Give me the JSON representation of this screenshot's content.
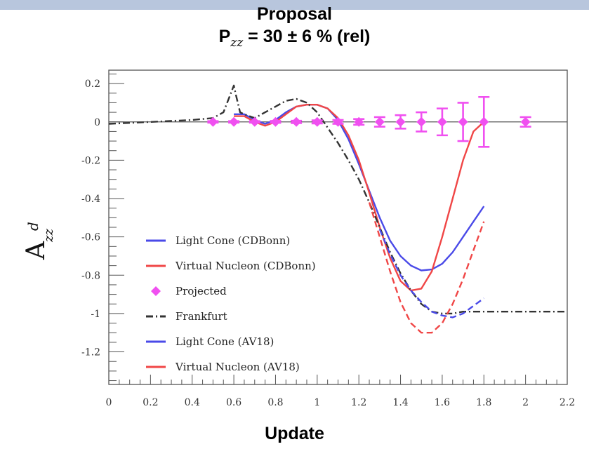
{
  "header": {
    "title": "Proposal",
    "subtitle_prefix": "P",
    "subtitle_sub": "zz",
    "subtitle_rest": " = 30 ± 6 % (rel)"
  },
  "footer": {
    "label": "Update"
  },
  "chart_data": {
    "type": "line",
    "xlim": [
      0,
      2.2
    ],
    "ylim": [
      -1.37,
      0.27
    ],
    "grid": false,
    "legend_position": "bottom-left",
    "ylabel_main": "A",
    "ylabel_sup": "d",
    "ylabel_sub": "zz",
    "x_ticks": [
      "0",
      "0.2",
      "0.4",
      "0.6",
      "0.8",
      "1",
      "1.2",
      "1.4",
      "1.6",
      "1.8",
      "2",
      "2.2"
    ],
    "y_ticks": [
      "0.2",
      "0",
      "-0.2",
      "-0.4",
      "-0.6",
      "-0.8",
      "-1",
      "-1.2"
    ],
    "colors": {
      "blue": "#4a4ae8",
      "red": "#f04646",
      "magenta": "#f050f0",
      "black": "#333333"
    },
    "series": [
      {
        "name": "Light Cone (CDBonn)",
        "color": "#4a4ae8",
        "dash": "solid",
        "x": [
          0.6,
          0.65,
          0.7,
          0.75,
          0.8,
          0.85,
          0.9,
          0.95,
          1.0,
          1.05,
          1.1,
          1.15,
          1.2,
          1.25,
          1.3,
          1.35,
          1.4,
          1.45,
          1.5,
          1.55,
          1.6,
          1.65,
          1.7,
          1.75,
          1.8
        ],
        "y": [
          0.04,
          0.04,
          0.01,
          -0.01,
          0.01,
          0.05,
          0.08,
          0.09,
          0.09,
          0.07,
          0.01,
          -0.09,
          -0.22,
          -0.36,
          -0.5,
          -0.62,
          -0.7,
          -0.75,
          -0.775,
          -0.77,
          -0.74,
          -0.68,
          -0.6,
          -0.52,
          -0.44
        ]
      },
      {
        "name": "Virtual Nucleon (CDBonn)",
        "color": "#f04646",
        "dash": "solid",
        "x": [
          0.6,
          0.65,
          0.7,
          0.75,
          0.8,
          0.85,
          0.9,
          0.95,
          1.0,
          1.05,
          1.1,
          1.15,
          1.2,
          1.25,
          1.3,
          1.35,
          1.4,
          1.45,
          1.5,
          1.55,
          1.6,
          1.65,
          1.7,
          1.75,
          1.8
        ],
        "y": [
          0.03,
          0.03,
          0.0,
          -0.02,
          0.0,
          0.04,
          0.08,
          0.09,
          0.09,
          0.07,
          0.02,
          -0.07,
          -0.2,
          -0.37,
          -0.55,
          -0.71,
          -0.83,
          -0.88,
          -0.87,
          -0.78,
          -0.6,
          -0.4,
          -0.2,
          -0.05,
          0.0
        ]
      },
      {
        "name": "Frankfurt",
        "color": "#333333",
        "dash": "dashdot",
        "x": [
          0.0,
          0.2,
          0.4,
          0.5,
          0.55,
          0.6,
          0.61,
          0.63,
          0.65,
          0.7,
          0.75,
          0.8,
          0.85,
          0.9,
          0.95,
          1.0,
          1.05,
          1.1,
          1.15,
          1.2,
          1.25,
          1.3,
          1.35,
          1.4,
          1.45,
          1.5,
          1.55,
          1.6,
          1.65,
          1.7,
          1.8,
          1.9,
          2.0,
          2.1,
          2.2
        ],
        "y": [
          -0.01,
          0.0,
          0.01,
          0.02,
          0.05,
          0.19,
          0.14,
          0.05,
          0.04,
          0.02,
          0.05,
          0.08,
          0.11,
          0.12,
          0.1,
          0.05,
          -0.03,
          -0.11,
          -0.2,
          -0.3,
          -0.42,
          -0.55,
          -0.68,
          -0.79,
          -0.88,
          -0.95,
          -0.99,
          -1.0,
          -1.0,
          -0.99,
          -0.99,
          -0.99,
          -0.99,
          -0.99,
          -0.99
        ]
      },
      {
        "name": "Light Cone (AV18)",
        "color": "#4a4ae8",
        "dash": "dashed",
        "x": [
          1.3,
          1.35,
          1.4,
          1.45,
          1.5,
          1.55,
          1.6,
          1.65,
          1.7,
          1.75,
          1.8
        ],
        "y": [
          -0.56,
          -0.69,
          -0.8,
          -0.88,
          -0.94,
          -0.99,
          -1.01,
          -1.02,
          -1.0,
          -0.96,
          -0.92
        ]
      },
      {
        "name": "Virtual Nucleon (AV18)",
        "color": "#f04646",
        "dash": "dashed",
        "x": [
          1.25,
          1.3,
          1.35,
          1.4,
          1.45,
          1.5,
          1.55,
          1.6,
          1.65,
          1.7,
          1.75,
          1.8
        ],
        "y": [
          -0.42,
          -0.6,
          -0.78,
          -0.94,
          -1.05,
          -1.1,
          -1.1,
          -1.05,
          -0.95,
          -0.82,
          -0.67,
          -0.52
        ]
      }
    ],
    "projected": {
      "name": "Projected",
      "color": "#f050f0",
      "x": [
        0.5,
        0.6,
        0.7,
        0.8,
        0.9,
        1.0,
        1.1,
        1.2,
        1.3,
        1.4,
        1.5,
        1.6,
        1.7,
        1.8,
        2.0
      ],
      "y": [
        0,
        0,
        0,
        0,
        0,
        0,
        0,
        0,
        0,
        0,
        0,
        0,
        0,
        0,
        0
      ],
      "err": [
        0.004,
        0.004,
        0.004,
        0.005,
        0.006,
        0.008,
        0.01,
        0.015,
        0.025,
        0.035,
        0.05,
        0.07,
        0.1,
        0.13,
        0.025
      ]
    },
    "systematic_bars": {
      "color": "#f050f0",
      "baseline": -1.37,
      "bins": [
        {
          "x0": 0.45,
          "x1": 0.55,
          "h": 0.01
        },
        {
          "x0": 0.75,
          "x1": 0.85,
          "h": 0.005
        },
        {
          "x0": 1.15,
          "x1": 1.25,
          "h": 0.01
        },
        {
          "x0": 1.25,
          "x1": 1.35,
          "h": 0.04
        },
        {
          "x0": 1.35,
          "x1": 1.45,
          "h": 0.06
        },
        {
          "x0": 1.45,
          "x1": 1.55,
          "h": 0.08
        },
        {
          "x0": 1.55,
          "x1": 1.65,
          "h": 0.08
        },
        {
          "x0": 1.65,
          "x1": 1.75,
          "h": 0.07
        },
        {
          "x0": 1.75,
          "x1": 1.85,
          "h": 0.05
        },
        {
          "x0": 1.9,
          "x1": 2.1,
          "h": 0.1
        }
      ]
    }
  }
}
